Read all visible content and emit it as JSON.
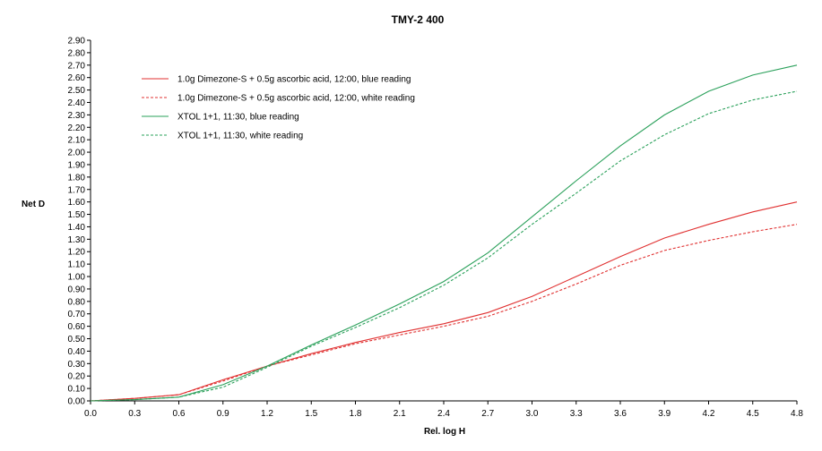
{
  "chart_data": {
    "type": "line",
    "title": "TMY-2 400",
    "xlabel": "Rel. log H",
    "ylabel": "Net D",
    "xlim": [
      0,
      4.8
    ],
    "ylim": [
      0,
      2.9
    ],
    "x_ticks": [
      "0.0",
      "0.3",
      "0.6",
      "0.9",
      "1.2",
      "1.5",
      "1.8",
      "2.1",
      "2.4",
      "2.7",
      "3.0",
      "3.3",
      "3.6",
      "3.9",
      "4.2",
      "4.5",
      "4.8"
    ],
    "y_ticks": [
      "0.00",
      "0.10",
      "0.20",
      "0.30",
      "0.40",
      "0.50",
      "0.60",
      "0.70",
      "0.80",
      "0.90",
      "1.00",
      "1.10",
      "1.20",
      "1.30",
      "1.40",
      "1.50",
      "1.60",
      "1.70",
      "1.80",
      "1.90",
      "2.00",
      "2.10",
      "2.20",
      "2.30",
      "2.40",
      "2.50",
      "2.60",
      "2.70",
      "2.80",
      "2.90"
    ],
    "grid": false,
    "legend_position": "top-left",
    "x": [
      0.0,
      0.3,
      0.6,
      0.9,
      1.2,
      1.5,
      1.8,
      2.1,
      2.4,
      2.7,
      3.0,
      3.3,
      3.6,
      3.9,
      4.2,
      4.5,
      4.8
    ],
    "series": [
      {
        "name": "1.0g Dimezone-S + 0.5g ascorbic acid, 12:00, blue reading",
        "color": "#e03030",
        "dash": "solid",
        "values": [
          0.0,
          0.02,
          0.05,
          0.17,
          0.28,
          0.38,
          0.47,
          0.55,
          0.62,
          0.71,
          0.84,
          1.0,
          1.16,
          1.31,
          1.42,
          1.52,
          1.6
        ]
      },
      {
        "name": "1.0g Dimezone-S + 0.5g ascorbic acid, 12:00, white reading",
        "color": "#e03030",
        "dash": "dashed",
        "values": [
          0.0,
          0.02,
          0.05,
          0.16,
          0.28,
          0.37,
          0.46,
          0.53,
          0.6,
          0.68,
          0.8,
          0.94,
          1.09,
          1.21,
          1.29,
          1.36,
          1.42
        ]
      },
      {
        "name": "XTOL 1+1, 11:30, blue reading",
        "color": "#2aa05a",
        "dash": "solid",
        "values": [
          0.0,
          0.01,
          0.03,
          0.13,
          0.28,
          0.45,
          0.61,
          0.78,
          0.96,
          1.19,
          1.48,
          1.77,
          2.05,
          2.3,
          2.49,
          2.62,
          2.7
        ]
      },
      {
        "name": "XTOL 1+1, 11:30, white reading",
        "color": "#2aa05a",
        "dash": "dashed",
        "values": [
          0.0,
          0.01,
          0.03,
          0.11,
          0.27,
          0.44,
          0.59,
          0.75,
          0.93,
          1.15,
          1.42,
          1.67,
          1.93,
          2.14,
          2.31,
          2.42,
          2.49
        ]
      }
    ]
  }
}
